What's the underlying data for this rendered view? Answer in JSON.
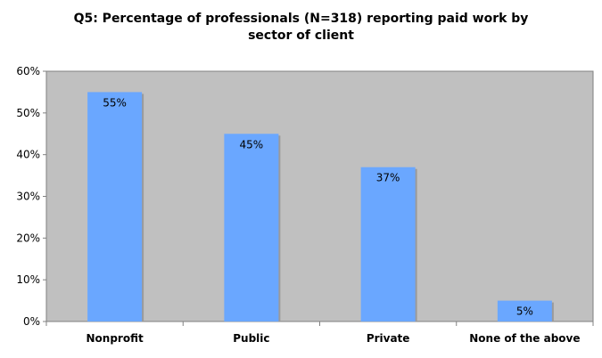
{
  "chart_data": {
    "type": "bar",
    "title_lines": [
      "Q5: Percentage of professionals (N=318) reporting paid work by",
      "sector of client"
    ],
    "categories": [
      "Nonprofit",
      "Public",
      "Private",
      "None of the above"
    ],
    "values": [
      55,
      45,
      37,
      5
    ],
    "value_labels": [
      "55%",
      "45%",
      "37%",
      "5%"
    ],
    "ylim": [
      0,
      60
    ],
    "y_ticks": [
      0,
      10,
      20,
      30,
      40,
      50,
      60
    ],
    "y_tick_labels": [
      "0%",
      "10%",
      "20%",
      "30%",
      "40%",
      "50%",
      "60%"
    ],
    "xlabel": "",
    "ylabel": "",
    "grid": false,
    "legend": "none",
    "colors": {
      "bar": "#6aa7ff",
      "plot_background": "#c0c0c0",
      "axis": "#808080"
    }
  }
}
